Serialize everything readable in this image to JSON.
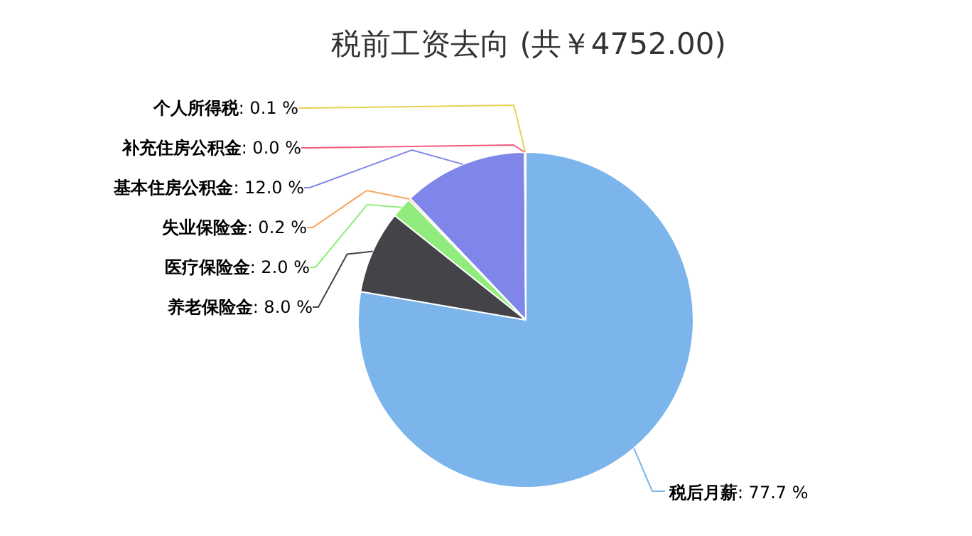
{
  "chart_data": {
    "type": "pie",
    "title": "税前工资去向 (共￥4752.00)",
    "categories": [
      "税后月薪",
      "养老保险金",
      "医疗保险金",
      "失业保险金",
      "基本住房公积金",
      "补充住房公积金",
      "个人所得税"
    ],
    "values": [
      77.7,
      8.0,
      2.0,
      0.2,
      12.0,
      0.0,
      0.1
    ],
    "colors": [
      "#7cb5ec",
      "#434348",
      "#90ed7d",
      "#f7a35c",
      "#8085e9",
      "#f15c80",
      "#e4d354"
    ],
    "value_labels": [
      ": 77.7 %",
      ": 8.0 %",
      ": 2.0 %",
      ": 0.2 %",
      ": 12.0 %",
      ": 0.0 %",
      ": 0.1 %"
    ]
  }
}
